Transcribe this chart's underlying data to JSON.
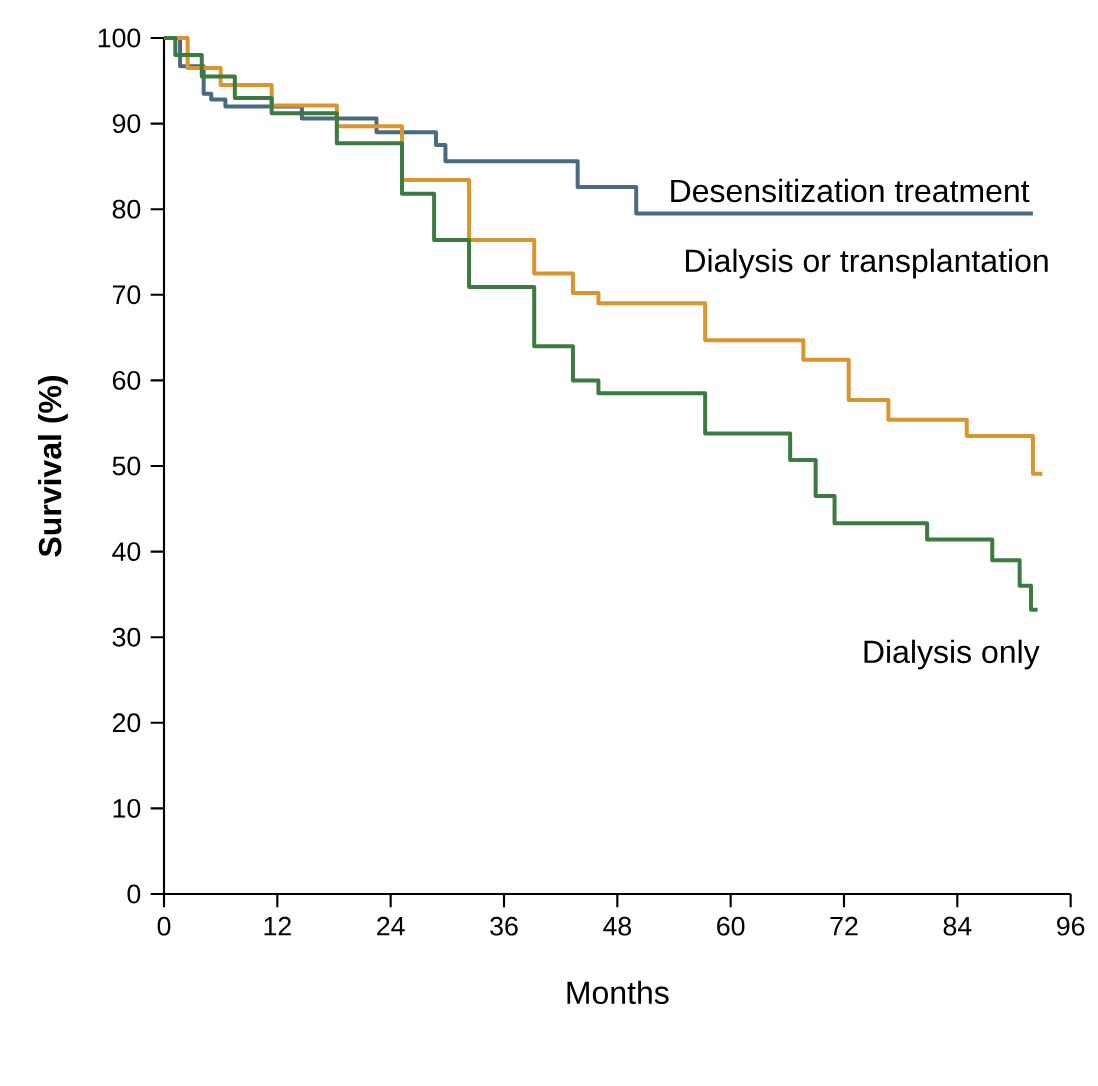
{
  "chart_data": {
    "type": "step",
    "xlabel": "Months",
    "ylabel": "Survival (%)",
    "xlim": [
      0,
      96
    ],
    "ylim": [
      0,
      100
    ],
    "xticks": [
      0,
      12,
      24,
      36,
      48,
      60,
      72,
      84,
      96
    ],
    "yticks": [
      0,
      10,
      20,
      30,
      40,
      50,
      60,
      70,
      80,
      90,
      100
    ],
    "grid": false,
    "marker": "none",
    "line_style": "solid",
    "series": [
      {
        "name": "Desensitization treatment",
        "color": "#4a6a80",
        "x": [
          0,
          1.7,
          4.2,
          5,
          6.5,
          14.6,
          22.5,
          28.8,
          29.8,
          43.8,
          50,
          92
        ],
        "values": [
          100,
          96.7,
          93.5,
          92.8,
          92,
          90.6,
          89,
          87.5,
          85.6,
          82.6,
          79.5,
          79.5
        ]
      },
      {
        "name": "Dialysis or transplantation",
        "color": "#d9952e",
        "x": [
          0,
          2.5,
          6,
          11.4,
          18.3,
          25.2,
          32.3,
          39.2,
          43.3,
          46,
          57.3,
          67.7,
          72.5,
          76.7,
          85,
          92,
          93
        ],
        "values": [
          100,
          96.5,
          94.5,
          92.1,
          89.7,
          83.4,
          76.4,
          72.5,
          70.2,
          69,
          64.7,
          62.4,
          57.7,
          55.4,
          53.5,
          49.1,
          49.1
        ]
      },
      {
        "name": "Dialysis only",
        "color": "#3d7a40",
        "x": [
          0,
          1.2,
          4,
          7.5,
          11.4,
          18.3,
          25.2,
          28.6,
          32.3,
          39.2,
          43.3,
          46,
          57.3,
          66.3,
          69,
          71,
          80.8,
          87.7,
          90.6,
          91.8,
          92.5
        ],
        "values": [
          100,
          98,
          95.5,
          93,
          91.2,
          87.7,
          81.8,
          76.4,
          70.9,
          64,
          60,
          58.5,
          53.8,
          50.7,
          46.5,
          43.3,
          41.4,
          39,
          36,
          33.2,
          33.2
        ]
      }
    ]
  }
}
